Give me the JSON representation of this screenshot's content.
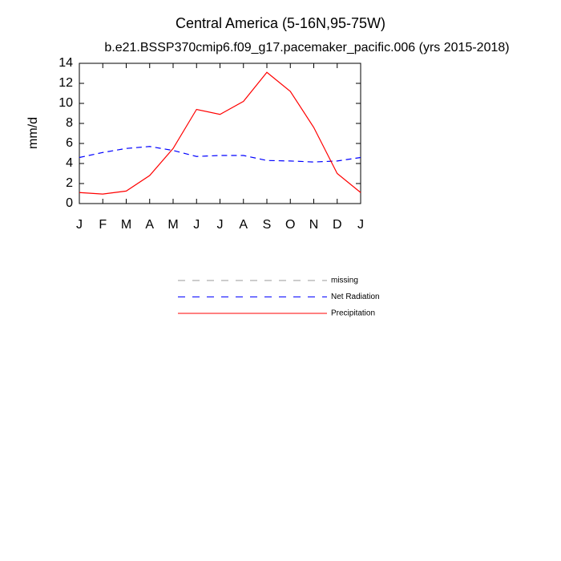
{
  "chart_data": {
    "type": "line",
    "title": "Central America (5-16N,95-75W)",
    "subtitle": "b.e21.BSSP370cmip6.f09_g17.pacemaker_pacific.006 (yrs 2015-2018)",
    "y_label": "mm/d",
    "categories": [
      "J",
      "F",
      "M",
      "A",
      "M",
      "J",
      "J",
      "A",
      "S",
      "O",
      "N",
      "D",
      "J"
    ],
    "series": [
      {
        "name": "missing",
        "color": "#999999",
        "dash": true,
        "values": [
          null,
          null,
          null,
          null,
          null,
          null,
          null,
          null,
          null,
          null,
          null,
          null,
          null
        ]
      },
      {
        "name": "Net Radiation",
        "color": "#0000ff",
        "dash": true,
        "values": [
          4.6,
          5.1,
          5.5,
          5.7,
          5.3,
          4.7,
          4.8,
          4.8,
          4.3,
          4.25,
          4.15,
          4.25,
          4.6
        ]
      },
      {
        "name": "Precipitation",
        "color": "#ff0000",
        "dash": false,
        "values": [
          1.1,
          0.95,
          1.25,
          2.8,
          5.5,
          9.4,
          8.9,
          10.2,
          13.1,
          11.2,
          7.6,
          3.0,
          1.1
        ]
      }
    ],
    "ylim": [
      0,
      14
    ],
    "yticks": [
      0,
      2,
      4,
      6,
      8,
      10,
      12,
      14
    ],
    "grid": false
  }
}
